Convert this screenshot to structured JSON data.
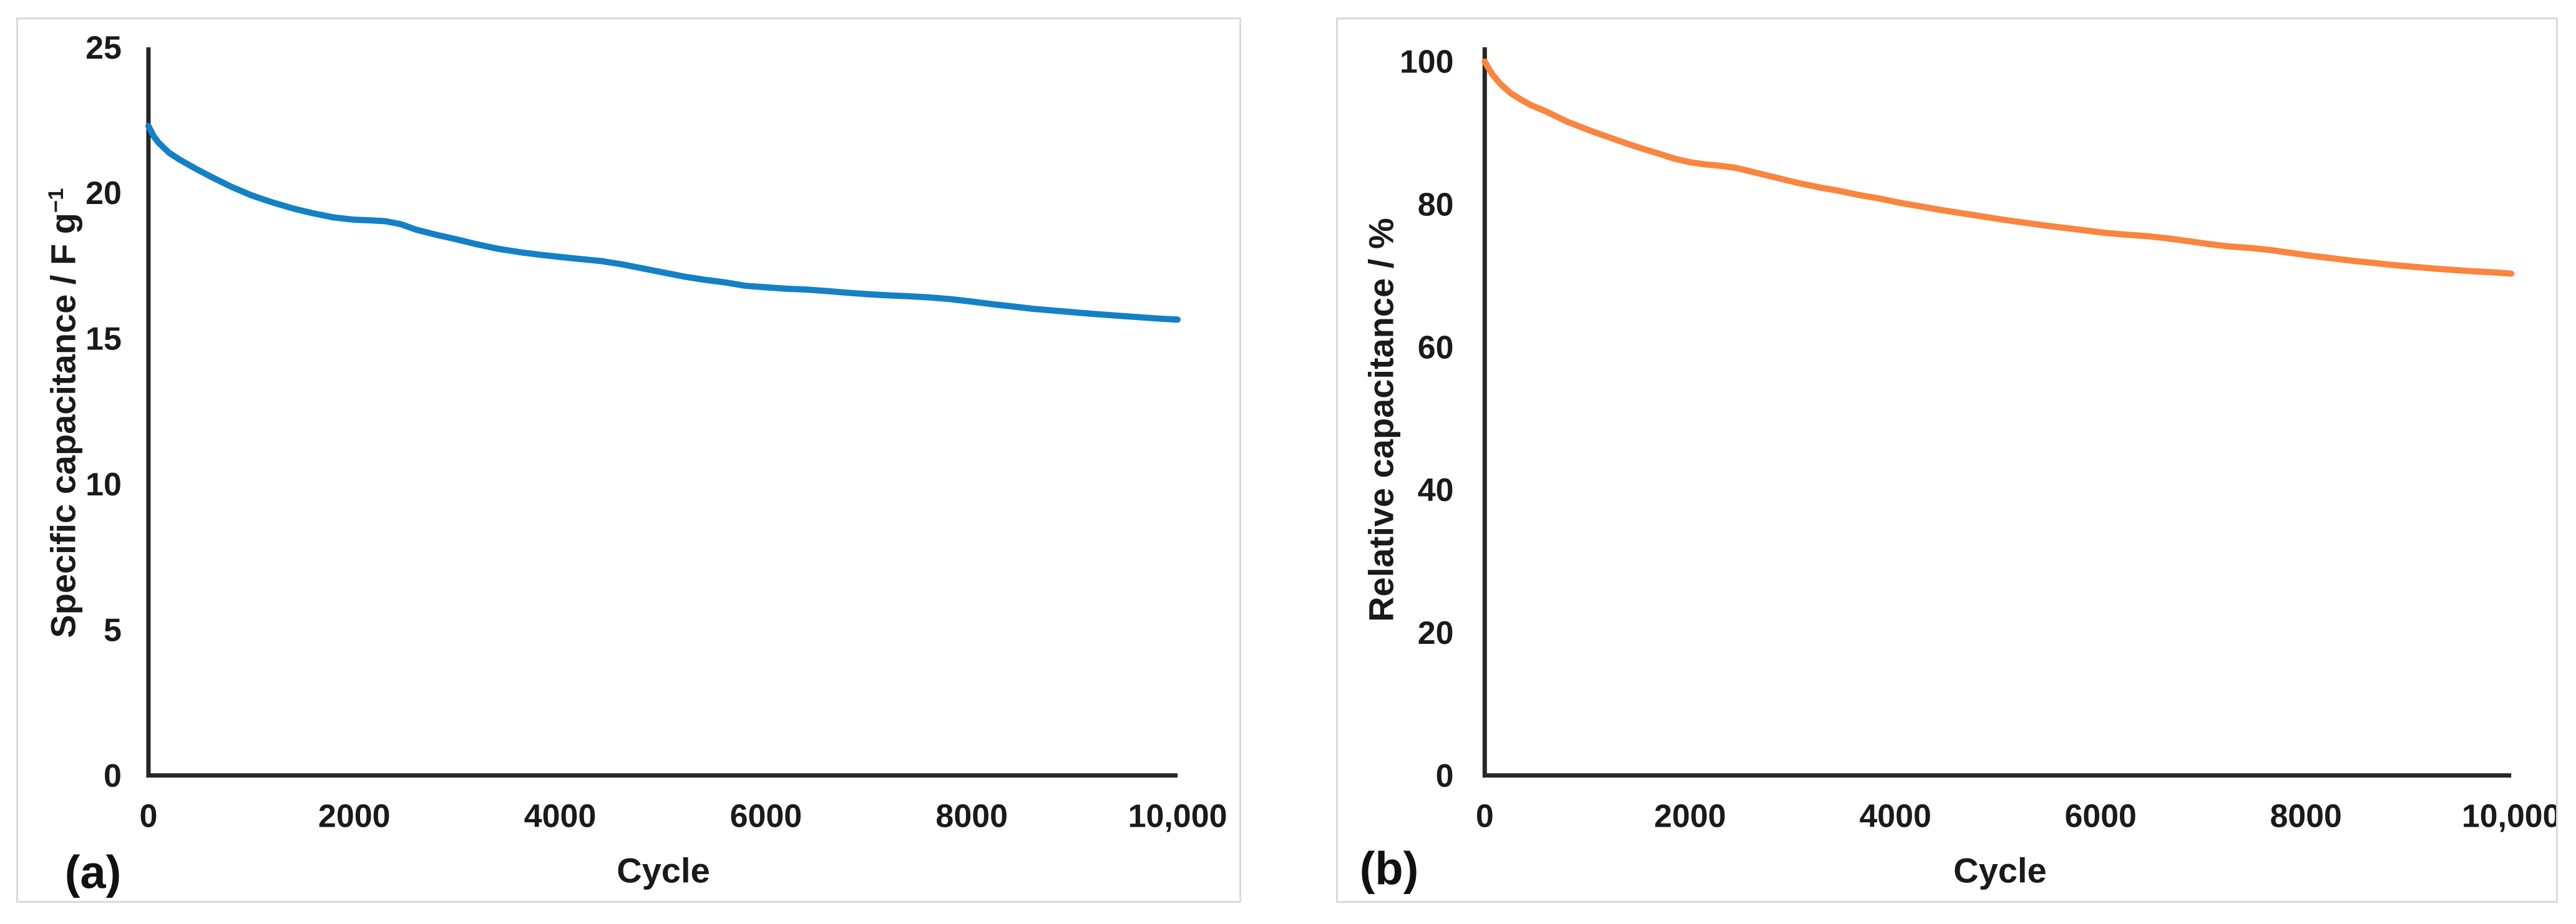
{
  "colors": {
    "axis_line": "#262626",
    "text": "#1a1a1a",
    "panel_border": "#d9d9d9",
    "background": "#ffffff",
    "series_a_blue": "#1480c6",
    "series_b_orange": "#f9853e"
  },
  "chart_data": [
    {
      "id": "a",
      "type": "line",
      "panel_label": "(a)",
      "title": "",
      "xlabel": "Cycle",
      "ylabel_main": "Specific capacitance / F g",
      "ylabel_sup": "−1",
      "xlim": [
        0,
        10000
      ],
      "ylim": [
        0,
        25
      ],
      "grid": false,
      "legend": "none",
      "x_ticks": [
        0,
        2000,
        4000,
        6000,
        8000,
        10000
      ],
      "x_tick_labels": [
        "0",
        "2000",
        "4000",
        "6000",
        "8000",
        "10,000"
      ],
      "y_ticks": [
        0,
        5,
        10,
        15,
        20,
        25
      ],
      "y_tick_labels": [
        "0",
        "5",
        "10",
        "15",
        "20",
        "25"
      ],
      "line_color": "#1480c6",
      "series": [
        {
          "name": "specific-capacitance",
          "x": [
            0,
            50,
            100,
            200,
            300,
            450,
            600,
            800,
            1000,
            1200,
            1400,
            1600,
            1800,
            2000,
            2150,
            2300,
            2450,
            2600,
            2800,
            3000,
            3200,
            3400,
            3600,
            3800,
            4000,
            4200,
            4400,
            4600,
            4800,
            5000,
            5200,
            5400,
            5600,
            5800,
            6000,
            6200,
            6400,
            6600,
            6800,
            7000,
            7200,
            7400,
            7600,
            7800,
            8000,
            8200,
            8400,
            8600,
            8800,
            9000,
            9200,
            9400,
            9600,
            9800,
            10000
          ],
          "y": [
            22.3,
            21.95,
            21.72,
            21.38,
            21.15,
            20.85,
            20.57,
            20.22,
            19.92,
            19.68,
            19.47,
            19.3,
            19.16,
            19.08,
            19.06,
            19.03,
            18.93,
            18.74,
            18.56,
            18.4,
            18.23,
            18.08,
            17.97,
            17.88,
            17.8,
            17.73,
            17.66,
            17.55,
            17.41,
            17.27,
            17.13,
            17.02,
            16.93,
            16.81,
            16.76,
            16.71,
            16.68,
            16.63,
            16.57,
            16.52,
            16.48,
            16.45,
            16.41,
            16.35,
            16.27,
            16.18,
            16.1,
            16.02,
            15.96,
            15.9,
            15.84,
            15.79,
            15.74,
            15.69,
            15.65
          ]
        }
      ]
    },
    {
      "id": "b",
      "type": "line",
      "panel_label": "(b)",
      "title": "",
      "xlabel": "Cycle",
      "ylabel_main": "Relative capacitance / %",
      "ylabel_sup": "",
      "xlim": [
        0,
        10000
      ],
      "ylim": [
        0,
        100
      ],
      "grid": false,
      "legend": "none",
      "x_ticks": [
        0,
        2000,
        4000,
        6000,
        8000,
        10000
      ],
      "x_tick_labels": [
        "0",
        "2000",
        "4000",
        "6000",
        "8000",
        "10,000"
      ],
      "y_ticks": [
        0,
        20,
        40,
        60,
        80,
        100
      ],
      "y_tick_labels": [
        "0",
        "20",
        "40",
        "60",
        "80",
        "100"
      ],
      "line_color": "#f9853e",
      "series": [
        {
          "name": "relative-capacitance",
          "x": [
            0,
            40,
            80,
            150,
            250,
            350,
            450,
            600,
            800,
            1050,
            1250,
            1450,
            1650,
            1850,
            2000,
            2150,
            2300,
            2450,
            2650,
            2850,
            3050,
            3250,
            3450,
            3650,
            3850,
            4050,
            4250,
            4450,
            4650,
            4850,
            5050,
            5250,
            5450,
            5650,
            5850,
            6050,
            6250,
            6450,
            6650,
            6850,
            7050,
            7250,
            7450,
            7650,
            7850,
            8050,
            8250,
            8450,
            8650,
            8850,
            9050,
            9250,
            9450,
            9650,
            9850,
            10000
          ],
          "y": [
            100,
            99,
            98.1,
            96.9,
            95.6,
            94.7,
            93.9,
            93,
            91.6,
            90.2,
            89.2,
            88.2,
            87.3,
            86.4,
            85.9,
            85.6,
            85.4,
            85.1,
            84.4,
            83.7,
            83,
            82.4,
            81.9,
            81.3,
            80.8,
            80.2,
            79.7,
            79.2,
            78.75,
            78.3,
            77.85,
            77.45,
            77.05,
            76.7,
            76.35,
            76,
            75.75,
            75.55,
            75.25,
            74.85,
            74.45,
            74.1,
            73.9,
            73.6,
            73.2,
            72.8,
            72.45,
            72.1,
            71.8,
            71.5,
            71.25,
            71,
            70.8,
            70.6,
            70.45,
            70.3
          ]
        }
      ]
    }
  ]
}
